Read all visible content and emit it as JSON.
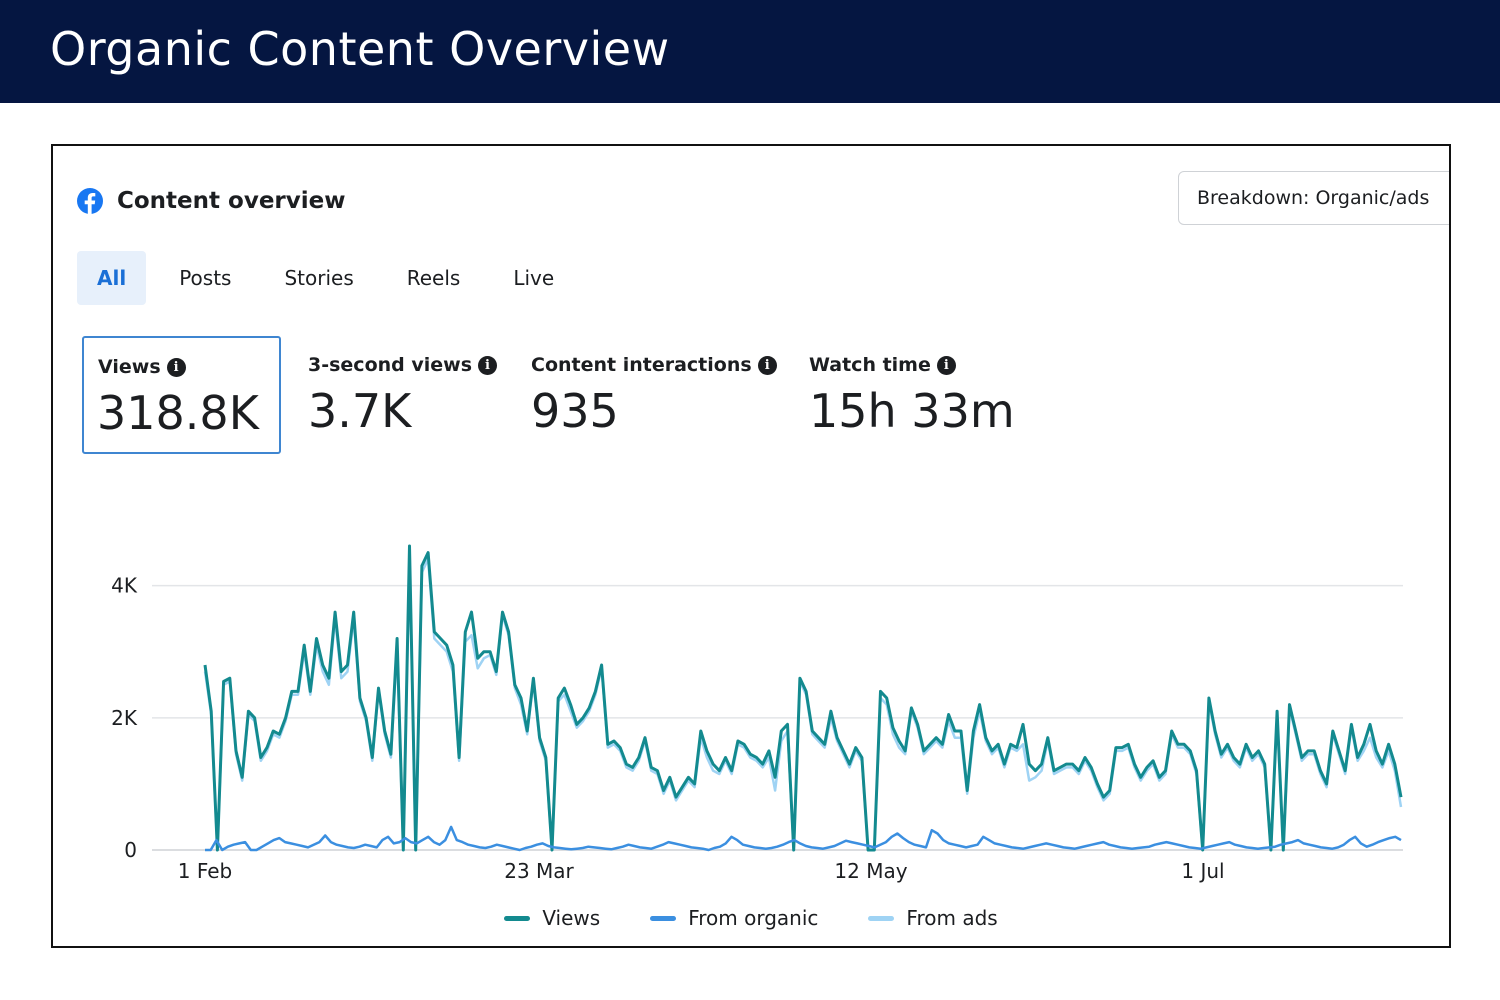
{
  "banner": {
    "title": "Organic Content Overview"
  },
  "card": {
    "title": "Content overview",
    "icon": "facebook-logo-icon",
    "breakdown_label": "Breakdown: Organic/ads"
  },
  "tabs": [
    {
      "label": "All",
      "active": true
    },
    {
      "label": "Posts",
      "active": false
    },
    {
      "label": "Stories",
      "active": false
    },
    {
      "label": "Reels",
      "active": false
    },
    {
      "label": "Live",
      "active": false
    }
  ],
  "metrics": [
    {
      "label": "Views",
      "value": "318.8K",
      "selected": true
    },
    {
      "label": "3-second views",
      "value": "3.7K",
      "selected": false
    },
    {
      "label": "Content interactions",
      "value": "935",
      "selected": false
    },
    {
      "label": "Watch time",
      "value": "15h 33m",
      "selected": false
    }
  ],
  "colors": {
    "banner": "#051641",
    "views": "#138a8f",
    "organic": "#3b8fe0",
    "ads": "#9fd3f4",
    "active_tab": "#1a6fd6",
    "grid": "#e3e5e8"
  },
  "chart_data": {
    "type": "line",
    "x_tick_labels": [
      "1 Feb",
      "23 Mar",
      "12 May",
      "1 Jul"
    ],
    "y_tick_labels": [
      "0",
      "2K",
      "4K"
    ],
    "ylim": [
      0,
      4600
    ],
    "legend_position": "bottom-center",
    "series": [
      {
        "name": "Views",
        "color": "#138a8f",
        "values": [
          2800,
          2100,
          0,
          2550,
          2600,
          1500,
          1100,
          2100,
          2000,
          1400,
          1550,
          1800,
          1750,
          2000,
          2400,
          2400,
          3100,
          2400,
          3200,
          2800,
          2600,
          3600,
          2700,
          2800,
          3600,
          2300,
          2000,
          1400,
          2450,
          1800,
          1450,
          3200,
          0,
          4600,
          0,
          4300,
          4500,
          3300,
          3200,
          3100,
          2800,
          1400,
          3300,
          3600,
          2900,
          3000,
          3000,
          2700,
          3600,
          3300,
          2500,
          2300,
          1800,
          2600,
          1700,
          1400,
          0,
          2300,
          2450,
          2200,
          1900,
          2000,
          2150,
          2400,
          2800,
          1600,
          1650,
          1550,
          1300,
          1250,
          1400,
          1700,
          1250,
          1200,
          900,
          1100,
          800,
          950,
          1100,
          1000,
          1800,
          1500,
          1300,
          1200,
          1400,
          1200,
          1650,
          1600,
          1450,
          1400,
          1300,
          1500,
          1100,
          1800,
          1900,
          0,
          2600,
          2400,
          1800,
          1700,
          1600,
          2100,
          1700,
          1500,
          1300,
          1550,
          1400,
          0,
          0,
          2400,
          2300,
          1850,
          1650,
          1500,
          2150,
          1900,
          1500,
          1600,
          1700,
          1600,
          2050,
          1800,
          1800,
          900,
          1800,
          2200,
          1700,
          1500,
          1600,
          1300,
          1600,
          1550,
          1900,
          1300,
          1200,
          1300,
          1700,
          1200,
          1250,
          1300,
          1300,
          1200,
          1400,
          1250,
          1000,
          800,
          900,
          1550,
          1550,
          1600,
          1300,
          1100,
          1250,
          1350,
          1100,
          1200,
          1800,
          1600,
          1600,
          1500,
          1200,
          0,
          2300,
          1800,
          1450,
          1600,
          1400,
          1300,
          1600,
          1400,
          1500,
          1300,
          0,
          2100,
          0,
          2200,
          1800,
          1400,
          1500,
          1500,
          1200,
          1000,
          1800,
          1500,
          1200,
          1900,
          1400,
          1600,
          1900,
          1500,
          1300,
          1600,
          1300,
          800
        ]
      },
      {
        "name": "From organic",
        "color": "#3b8fe0",
        "values": [
          0,
          0,
          150,
          0,
          50,
          80,
          100,
          120,
          0,
          0,
          50,
          100,
          150,
          180,
          120,
          100,
          80,
          60,
          40,
          80,
          120,
          220,
          120,
          80,
          60,
          40,
          30,
          50,
          80,
          60,
          40,
          150,
          200,
          100,
          120,
          180,
          120,
          100,
          150,
          200,
          120,
          80,
          150,
          350,
          150,
          120,
          80,
          60,
          40,
          30,
          50,
          80,
          60,
          40,
          20,
          0,
          30,
          50,
          80,
          100,
          60,
          40,
          30,
          20,
          10,
          20,
          30,
          50,
          40,
          30,
          20,
          10,
          30,
          50,
          80,
          60,
          40,
          30,
          20,
          50,
          80,
          120,
          100,
          80,
          60,
          40,
          30,
          20,
          0,
          30,
          50,
          100,
          200,
          150,
          80,
          60,
          40,
          30,
          20,
          30,
          50,
          80,
          120,
          150,
          100,
          60,
          40,
          30,
          20,
          40,
          60,
          100,
          140,
          120,
          100,
          80,
          60,
          40,
          80,
          120,
          200,
          250,
          180,
          120,
          80,
          60,
          40,
          300,
          250,
          150,
          100,
          80,
          60,
          40,
          60,
          80,
          200,
          150,
          100,
          80,
          60,
          40,
          30,
          20,
          40,
          60,
          80,
          100,
          80,
          60,
          40,
          30,
          20,
          40,
          60,
          80,
          100,
          120,
          80,
          60,
          40,
          30,
          20,
          30,
          40,
          50,
          80,
          100,
          120,
          100,
          80,
          60,
          40,
          30,
          20,
          40,
          60,
          80,
          100,
          120,
          80,
          60,
          40,
          30,
          20,
          30,
          40,
          50,
          80,
          100,
          120,
          150,
          100,
          80,
          60,
          40,
          30,
          20,
          40,
          80,
          150,
          200,
          100,
          50,
          80,
          120,
          150,
          180,
          200,
          150
        ]
      },
      {
        "name": "From ads",
        "color": "#9fd3f4",
        "values": [
          2700,
          2050,
          0,
          2500,
          2550,
          1450,
          1050,
          2050,
          1950,
          1350,
          1500,
          1750,
          1700,
          1950,
          2350,
          2350,
          3000,
          2350,
          3100,
          2700,
          2500,
          3500,
          2600,
          2700,
          3500,
          2250,
          1950,
          1350,
          2400,
          1750,
          1400,
          3050,
          0,
          4500,
          0,
          4200,
          4400,
          3200,
          3100,
          3000,
          2700,
          1350,
          3150,
          3250,
          2750,
          2900,
          2950,
          2650,
          3550,
          3250,
          2450,
          2200,
          1750,
          2550,
          1650,
          1350,
          0,
          2250,
          2350,
          2100,
          1850,
          1950,
          2100,
          2350,
          2750,
          1550,
          1600,
          1500,
          1250,
          1200,
          1350,
          1650,
          1200,
          1150,
          850,
          1050,
          750,
          900,
          1050,
          950,
          1700,
          1400,
          1200,
          1150,
          1350,
          1150,
          1600,
          1550,
          1400,
          1350,
          1250,
          1400,
          900,
          1650,
          1800,
          0,
          2550,
          2350,
          1750,
          1650,
          1550,
          2000,
          1650,
          1450,
          1250,
          1500,
          1350,
          0,
          0,
          2300,
          2200,
          1750,
          1550,
          1450,
          2100,
          1850,
          1450,
          1550,
          1650,
          1550,
          1950,
          1700,
          1700,
          850,
          1700,
          2100,
          1650,
          1450,
          1550,
          1250,
          1550,
          1500,
          1600,
          1050,
          1100,
          1200,
          1650,
          1150,
          1200,
          1250,
          1250,
          1150,
          1350,
          1200,
          950,
          750,
          850,
          1500,
          1500,
          1550,
          1250,
          1050,
          1200,
          1300,
          1050,
          1150,
          1750,
          1550,
          1550,
          1450,
          1150,
          0,
          2250,
          1750,
          1400,
          1550,
          1350,
          1250,
          1550,
          1350,
          1450,
          1250,
          0,
          2050,
          0,
          2150,
          1750,
          1350,
          1450,
          1450,
          1150,
          950,
          1750,
          1450,
          1150,
          1850,
          1350,
          1500,
          1700,
          1400,
          1250,
          1500,
          1200,
          650
        ]
      }
    ]
  }
}
